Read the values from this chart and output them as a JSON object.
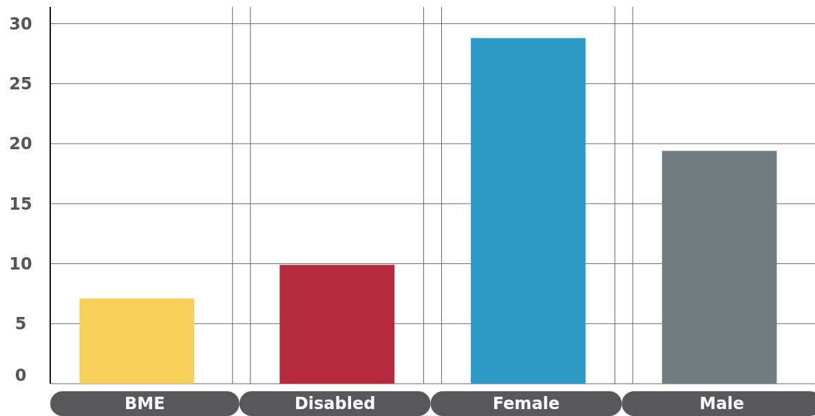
{
  "chart_data": {
    "type": "bar",
    "categories": [
      "BME",
      "Disabled",
      "Female",
      "Male"
    ],
    "values": [
      7.1,
      9.9,
      28.8,
      19.4
    ],
    "colors": [
      "#f6d05b",
      "#b52a3f",
      "#2e9ac4",
      "#6f7b7f"
    ],
    "ylim": [
      0,
      31.4
    ],
    "yticks": [
      0,
      5,
      10,
      15,
      20,
      25,
      30
    ],
    "grid": true
  }
}
